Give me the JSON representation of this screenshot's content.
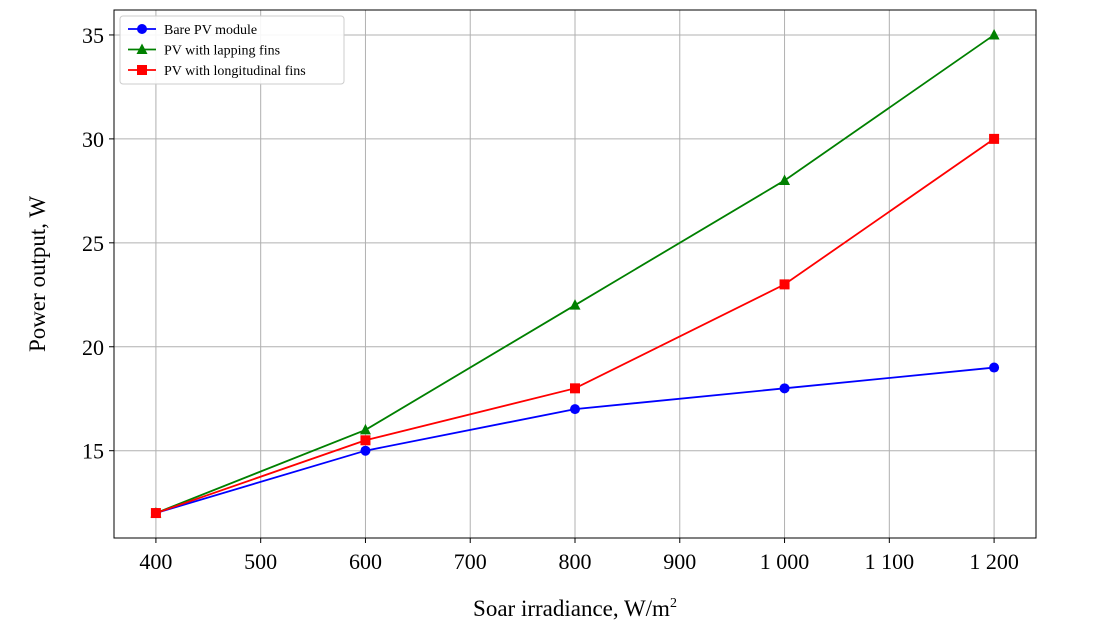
{
  "chart_data": {
    "type": "line",
    "x": [
      400,
      600,
      800,
      1000,
      1200
    ],
    "series": [
      {
        "name": "Bare PV module",
        "values": [
          12,
          15,
          17,
          18,
          19
        ],
        "color": "#0000ff",
        "marker": "circle"
      },
      {
        "name": "PV with lapping fins",
        "values": [
          12,
          16,
          22,
          28,
          35
        ],
        "color": "#008000",
        "marker": "triangle"
      },
      {
        "name": "PV with longitudinal fins",
        "values": [
          12,
          15.5,
          18,
          23,
          30
        ],
        "color": "#ff0000",
        "marker": "square"
      }
    ],
    "xlabel": "Soar irradiance, W/m",
    "xlabel_sup": "2",
    "ylabel": "Power output,  W",
    "xlim": [
      360,
      1240
    ],
    "ylim": [
      10.8,
      36.2
    ],
    "xticks": [
      400,
      500,
      600,
      700,
      800,
      900,
      1000,
      1100,
      1200
    ],
    "xtick_labels": [
      "400",
      "500",
      "600",
      "700",
      "800",
      "900",
      "1 000",
      "1 100",
      "1 200"
    ],
    "yticks": [
      15,
      20,
      25,
      30,
      35
    ],
    "ytick_labels": [
      "15",
      "20",
      "25",
      "30",
      "35"
    ],
    "grid": true,
    "legend_position": "top-left"
  }
}
